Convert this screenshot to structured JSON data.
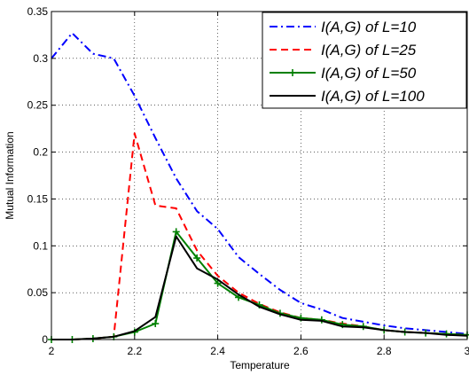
{
  "chart_data": {
    "type": "line",
    "title": "",
    "xlabel": "Temperature",
    "ylabel": "Mutual Information",
    "xlim": [
      2,
      3
    ],
    "ylim": [
      0,
      0.35
    ],
    "xticks": [
      "2",
      "2.2",
      "2.4",
      "2.6",
      "2.8",
      "3"
    ],
    "yticks": [
      "0",
      "0.05",
      "0.1",
      "0.15",
      "0.2",
      "0.25",
      "0.3",
      "0.35"
    ],
    "grid": true,
    "legend_position": "top-right",
    "series": [
      {
        "name": "I(A,G) of L=10",
        "color": "#0000ff",
        "style": "dash-dot",
        "marker": "none",
        "x": [
          2.0,
          2.05,
          2.1,
          2.15,
          2.2,
          2.25,
          2.3,
          2.35,
          2.4,
          2.45,
          2.5,
          2.55,
          2.6,
          2.65,
          2.7,
          2.75,
          2.8,
          2.85,
          2.9,
          2.95,
          3.0
        ],
        "y": [
          0.3,
          0.327,
          0.305,
          0.3,
          0.26,
          0.215,
          0.172,
          0.137,
          0.118,
          0.088,
          0.07,
          0.053,
          0.039,
          0.032,
          0.023,
          0.019,
          0.015,
          0.012,
          0.01,
          0.008,
          0.006
        ]
      },
      {
        "name": "I(A,G) of L=25",
        "color": "#ff0000",
        "style": "dashed",
        "marker": "none",
        "x": [
          2.0,
          2.05,
          2.1,
          2.15,
          2.2,
          2.25,
          2.3,
          2.35,
          2.4,
          2.45,
          2.5,
          2.55,
          2.6,
          2.65,
          2.7,
          2.75,
          2.8,
          2.85,
          2.9,
          2.95,
          3.0
        ],
        "y": [
          0.0,
          0.0,
          0.001,
          0.003,
          0.22,
          0.143,
          0.14,
          0.095,
          0.068,
          0.05,
          0.038,
          0.029,
          0.023,
          0.021,
          0.017,
          0.014,
          0.01,
          0.008,
          0.007,
          0.006,
          0.005
        ]
      },
      {
        "name": "I(A,G) of L=50",
        "color": "#008000",
        "style": "solid",
        "marker": "plus",
        "x": [
          2.0,
          2.05,
          2.1,
          2.15,
          2.2,
          2.25,
          2.3,
          2.35,
          2.4,
          2.45,
          2.5,
          2.55,
          2.6,
          2.65,
          2.7,
          2.75,
          2.8,
          2.85,
          2.9,
          2.95,
          3.0
        ],
        "y": [
          0.0,
          0.0,
          0.001,
          0.003,
          0.008,
          0.017,
          0.115,
          0.087,
          0.06,
          0.045,
          0.037,
          0.028,
          0.023,
          0.021,
          0.016,
          0.014,
          0.01,
          0.008,
          0.007,
          0.006,
          0.005
        ]
      },
      {
        "name": "I(A,G) of L=100",
        "color": "#000000",
        "style": "solid",
        "marker": "none",
        "x": [
          2.0,
          2.05,
          2.1,
          2.15,
          2.2,
          2.25,
          2.3,
          2.35,
          2.4,
          2.45,
          2.5,
          2.55,
          2.6,
          2.65,
          2.7,
          2.75,
          2.8,
          2.85,
          2.9,
          2.95,
          3.0
        ],
        "y": [
          0.0,
          0.0,
          0.001,
          0.003,
          0.009,
          0.024,
          0.11,
          0.076,
          0.064,
          0.048,
          0.035,
          0.027,
          0.021,
          0.02,
          0.014,
          0.013,
          0.01,
          0.008,
          0.007,
          0.005,
          0.004
        ]
      }
    ]
  }
}
